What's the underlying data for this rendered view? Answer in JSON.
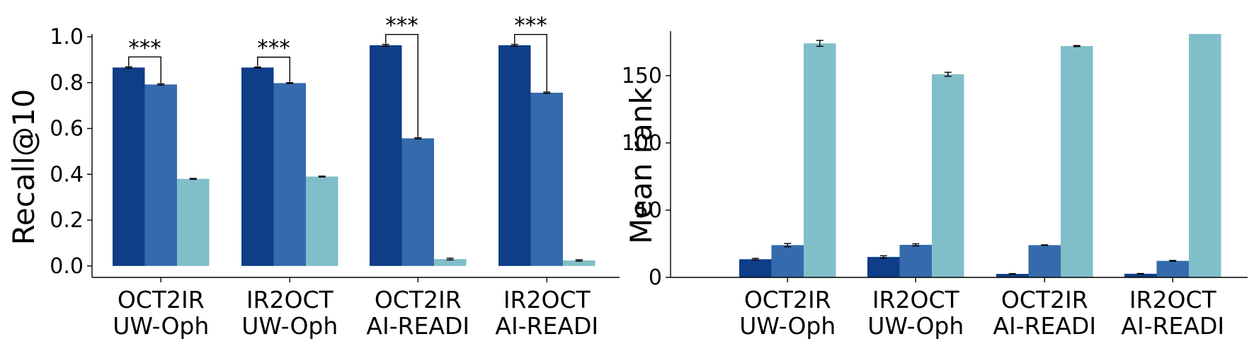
{
  "colors": [
    "#0f3d87",
    "#356bac",
    "#80bfc9"
  ],
  "chart_data": [
    {
      "type": "bar",
      "title": "",
      "xlabel": "",
      "ylabel": "Recall@10",
      "ylim": [
        -0.05,
        1.0
      ],
      "yticks": [
        0.0,
        0.2,
        0.4,
        0.6,
        0.8,
        1.0
      ],
      "ytick_labels": [
        "0.0",
        "0.2",
        "0.4",
        "0.6",
        "0.8",
        "1.0"
      ],
      "categories": [
        [
          "OCT2IR",
          "UW-Oph"
        ],
        [
          "IR2OCT",
          "UW-Oph"
        ],
        [
          "OCT2IR",
          "AI-READI"
        ],
        [
          "IR2OCT",
          "AI-READI"
        ]
      ],
      "series": [
        {
          "values": [
            0.866,
            0.866,
            0.963,
            0.963
          ],
          "errors": [
            0.003,
            0.002,
            0.004,
            0.004
          ]
        },
        {
          "values": [
            0.792,
            0.798,
            0.557,
            0.756
          ],
          "errors": [
            0.003,
            0.002,
            0.003,
            0.003
          ]
        },
        {
          "values": [
            0.38,
            0.39,
            0.03,
            0.024
          ],
          "errors": [
            0.002,
            0.002,
            0.004,
            0.003
          ]
        }
      ],
      "annotations": [
        {
          "group": 0,
          "from_series": 0,
          "to_series": 1,
          "text": "***"
        },
        {
          "group": 1,
          "from_series": 0,
          "to_series": 1,
          "text": "***"
        },
        {
          "group": 2,
          "from_series": 0,
          "to_series": 1,
          "text": "***"
        },
        {
          "group": 3,
          "from_series": 0,
          "to_series": 1,
          "text": "***"
        }
      ],
      "grid": false,
      "legend": "none"
    },
    {
      "type": "bar",
      "title": "",
      "xlabel": "",
      "ylabel": "Mean rank",
      "ylim": [
        0,
        181
      ],
      "yticks": [
        0,
        50,
        100,
        150
      ],
      "ytick_labels": [
        "0",
        "50",
        "100",
        "150"
      ],
      "categories": [
        [
          "OCT2IR",
          "UW-Oph"
        ],
        [
          "IR2OCT",
          "UW-Oph"
        ],
        [
          "OCT2IR",
          "AI-READI"
        ],
        [
          "IR2OCT",
          "AI-READI"
        ]
      ],
      "series": [
        {
          "values": [
            13.5,
            15.2,
            2.6,
            2.7
          ],
          "errors": [
            0.6,
            0.9,
            0.2,
            0.2
          ]
        },
        {
          "values": [
            24.0,
            24.2,
            24.0,
            12.3
          ],
          "errors": [
            1.2,
            0.8,
            0.2,
            0.3
          ]
        },
        {
          "values": [
            174.0,
            151.0,
            172.0,
            181.0
          ],
          "errors": [
            2.2,
            1.5,
            0.4,
            0.0
          ]
        }
      ],
      "annotations": [],
      "grid": false,
      "legend": "none"
    }
  ]
}
